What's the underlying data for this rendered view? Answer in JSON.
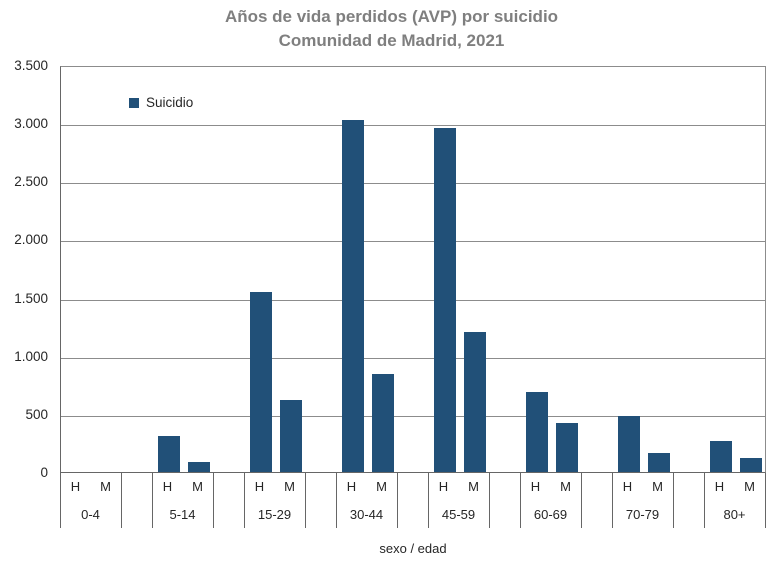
{
  "title": {
    "line1": "Años de vida perdidos (AVP) por suicidio",
    "line2": "Comunidad de Madrid, 2021"
  },
  "legend": {
    "label": "Suicidio"
  },
  "colors": {
    "bar": "#215078",
    "title": "#7f7f7f",
    "text": "#262626",
    "gridline": "#8c8c8c",
    "axis": "#666666"
  },
  "chart_data": {
    "type": "bar",
    "title": "Años de vida perdidos (AVP) por suicidio — Comunidad de Madrid, 2021",
    "xlabel": "sexo / edad",
    "ylabel": "",
    "ylim": [
      0,
      3500
    ],
    "grid": true,
    "legend_position": "top-left-inside",
    "legend_entries": [
      "Suicidio"
    ],
    "y_ticks": [
      {
        "value": 0,
        "label": "0"
      },
      {
        "value": 500,
        "label": "500"
      },
      {
        "value": 1000,
        "label": "1.000"
      },
      {
        "value": 1500,
        "label": "1.500"
      },
      {
        "value": 2000,
        "label": "2.000"
      },
      {
        "value": 2500,
        "label": "2.500"
      },
      {
        "value": 3000,
        "label": "3.000"
      },
      {
        "value": 3500,
        "label": "3.500"
      }
    ],
    "categories": [
      "0-4",
      "5-14",
      "15-29",
      "30-44",
      "45-59",
      "60-69",
      "70-79",
      "80+"
    ],
    "sex_labels": [
      "H",
      "M"
    ],
    "series": [
      {
        "name": "H",
        "values": [
          0,
          310,
          1545,
          3030,
          2960,
          685,
          480,
          265
        ]
      },
      {
        "name": "M",
        "values": [
          0,
          85,
          620,
          840,
          1200,
          420,
          160,
          120
        ]
      }
    ]
  }
}
